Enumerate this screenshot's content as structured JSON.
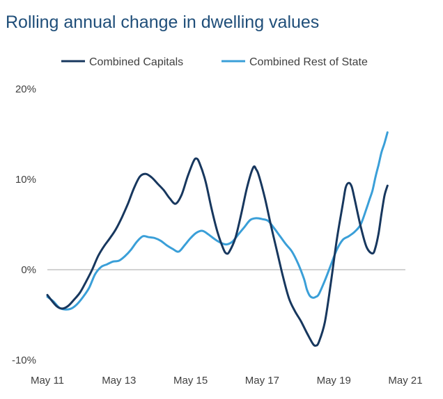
{
  "title": "Rolling annual change in dwelling values",
  "chart_data": {
    "type": "line",
    "title": "Rolling annual change in dwelling values",
    "xlabel": "",
    "ylabel": "",
    "x_tick_labels": [
      "May 11",
      "May 13",
      "May 15",
      "May 17",
      "May 19",
      "May 21"
    ],
    "y_tick_labels": [
      "20%",
      "10%",
      "0%",
      "-10%"
    ],
    "y_ticks": [
      20,
      10,
      0,
      -10
    ],
    "ylim": [
      -10,
      20
    ],
    "x_range_months": [
      0,
      120
    ],
    "baseline": 0,
    "legend_position": "top",
    "series": [
      {
        "name": "Combined Capitals",
        "color": "#17375e",
        "points": [
          [
            0,
            -2.8
          ],
          [
            3,
            -4.0
          ],
          [
            5,
            -4.3
          ],
          [
            7,
            -4.0
          ],
          [
            9,
            -3.3
          ],
          [
            11,
            -2.5
          ],
          [
            13,
            -1.3
          ],
          [
            15,
            0.0
          ],
          [
            17,
            1.5
          ],
          [
            19,
            2.6
          ],
          [
            21,
            3.5
          ],
          [
            23,
            4.5
          ],
          [
            25,
            5.8
          ],
          [
            27,
            7.3
          ],
          [
            29,
            9.0
          ],
          [
            31,
            10.3
          ],
          [
            33,
            10.6
          ],
          [
            35,
            10.2
          ],
          [
            37,
            9.5
          ],
          [
            39,
            8.8
          ],
          [
            41,
            7.9
          ],
          [
            43,
            7.3
          ],
          [
            45,
            8.3
          ],
          [
            47,
            10.3
          ],
          [
            49,
            12.0
          ],
          [
            50,
            12.3
          ],
          [
            51,
            11.8
          ],
          [
            53,
            9.8
          ],
          [
            55,
            6.8
          ],
          [
            57,
            4.2
          ],
          [
            59,
            2.3
          ],
          [
            60,
            1.8
          ],
          [
            61,
            2.0
          ],
          [
            63,
            3.5
          ],
          [
            65,
            6.2
          ],
          [
            67,
            9.2
          ],
          [
            69,
            11.3
          ],
          [
            70,
            11.1
          ],
          [
            71,
            10.3
          ],
          [
            73,
            7.8
          ],
          [
            75,
            4.8
          ],
          [
            77,
            2.0
          ],
          [
            79,
            -0.8
          ],
          [
            81,
            -3.2
          ],
          [
            83,
            -4.6
          ],
          [
            85,
            -5.7
          ],
          [
            87,
            -7.0
          ],
          [
            89,
            -8.2
          ],
          [
            90,
            -8.4
          ],
          [
            91,
            -8.0
          ],
          [
            93,
            -5.8
          ],
          [
            95,
            -1.5
          ],
          [
            97,
            3.3
          ],
          [
            99,
            7.2
          ],
          [
            100,
            9.1
          ],
          [
            101,
            9.6
          ],
          [
            102,
            9.2
          ],
          [
            103,
            7.8
          ],
          [
            105,
            4.8
          ],
          [
            107,
            2.5
          ],
          [
            109,
            1.8
          ],
          [
            110,
            2.5
          ],
          [
            111,
            4.0
          ],
          [
            112,
            6.2
          ],
          [
            113,
            8.2
          ],
          [
            114,
            9.3
          ]
        ]
      },
      {
        "name": "Combined Rest of State",
        "color": "#3a9fd8",
        "points": [
          [
            0,
            -3.0
          ],
          [
            2,
            -3.5
          ],
          [
            4,
            -4.2
          ],
          [
            6,
            -4.4
          ],
          [
            8,
            -4.3
          ],
          [
            10,
            -3.8
          ],
          [
            12,
            -3.0
          ],
          [
            14,
            -2.0
          ],
          [
            16,
            -0.5
          ],
          [
            18,
            0.3
          ],
          [
            20,
            0.6
          ],
          [
            22,
            0.9
          ],
          [
            24,
            1.0
          ],
          [
            26,
            1.5
          ],
          [
            28,
            2.2
          ],
          [
            30,
            3.1
          ],
          [
            32,
            3.7
          ],
          [
            34,
            3.6
          ],
          [
            36,
            3.5
          ],
          [
            38,
            3.2
          ],
          [
            40,
            2.7
          ],
          [
            42,
            2.3
          ],
          [
            44,
            2.0
          ],
          [
            46,
            2.7
          ],
          [
            48,
            3.5
          ],
          [
            50,
            4.1
          ],
          [
            52,
            4.3
          ],
          [
            54,
            3.9
          ],
          [
            56,
            3.4
          ],
          [
            58,
            3.0
          ],
          [
            60,
            2.8
          ],
          [
            62,
            3.1
          ],
          [
            64,
            3.9
          ],
          [
            66,
            4.7
          ],
          [
            68,
            5.5
          ],
          [
            70,
            5.7
          ],
          [
            72,
            5.6
          ],
          [
            74,
            5.4
          ],
          [
            76,
            4.6
          ],
          [
            78,
            3.7
          ],
          [
            80,
            2.8
          ],
          [
            82,
            2.0
          ],
          [
            84,
            0.7
          ],
          [
            86,
            -1.0
          ],
          [
            87,
            -2.2
          ],
          [
            88,
            -2.9
          ],
          [
            89,
            -3.1
          ],
          [
            90,
            -3.0
          ],
          [
            91,
            -2.7
          ],
          [
            93,
            -1.2
          ],
          [
            95,
            0.5
          ],
          [
            97,
            2.2
          ],
          [
            99,
            3.3
          ],
          [
            101,
            3.7
          ],
          [
            103,
            4.2
          ],
          [
            105,
            5.0
          ],
          [
            107,
            6.8
          ],
          [
            108,
            7.8
          ],
          [
            109,
            8.8
          ],
          [
            110,
            10.3
          ],
          [
            111,
            11.6
          ],
          [
            112,
            13.0
          ],
          [
            113,
            14.0
          ],
          [
            114,
            15.2
          ]
        ]
      }
    ]
  }
}
